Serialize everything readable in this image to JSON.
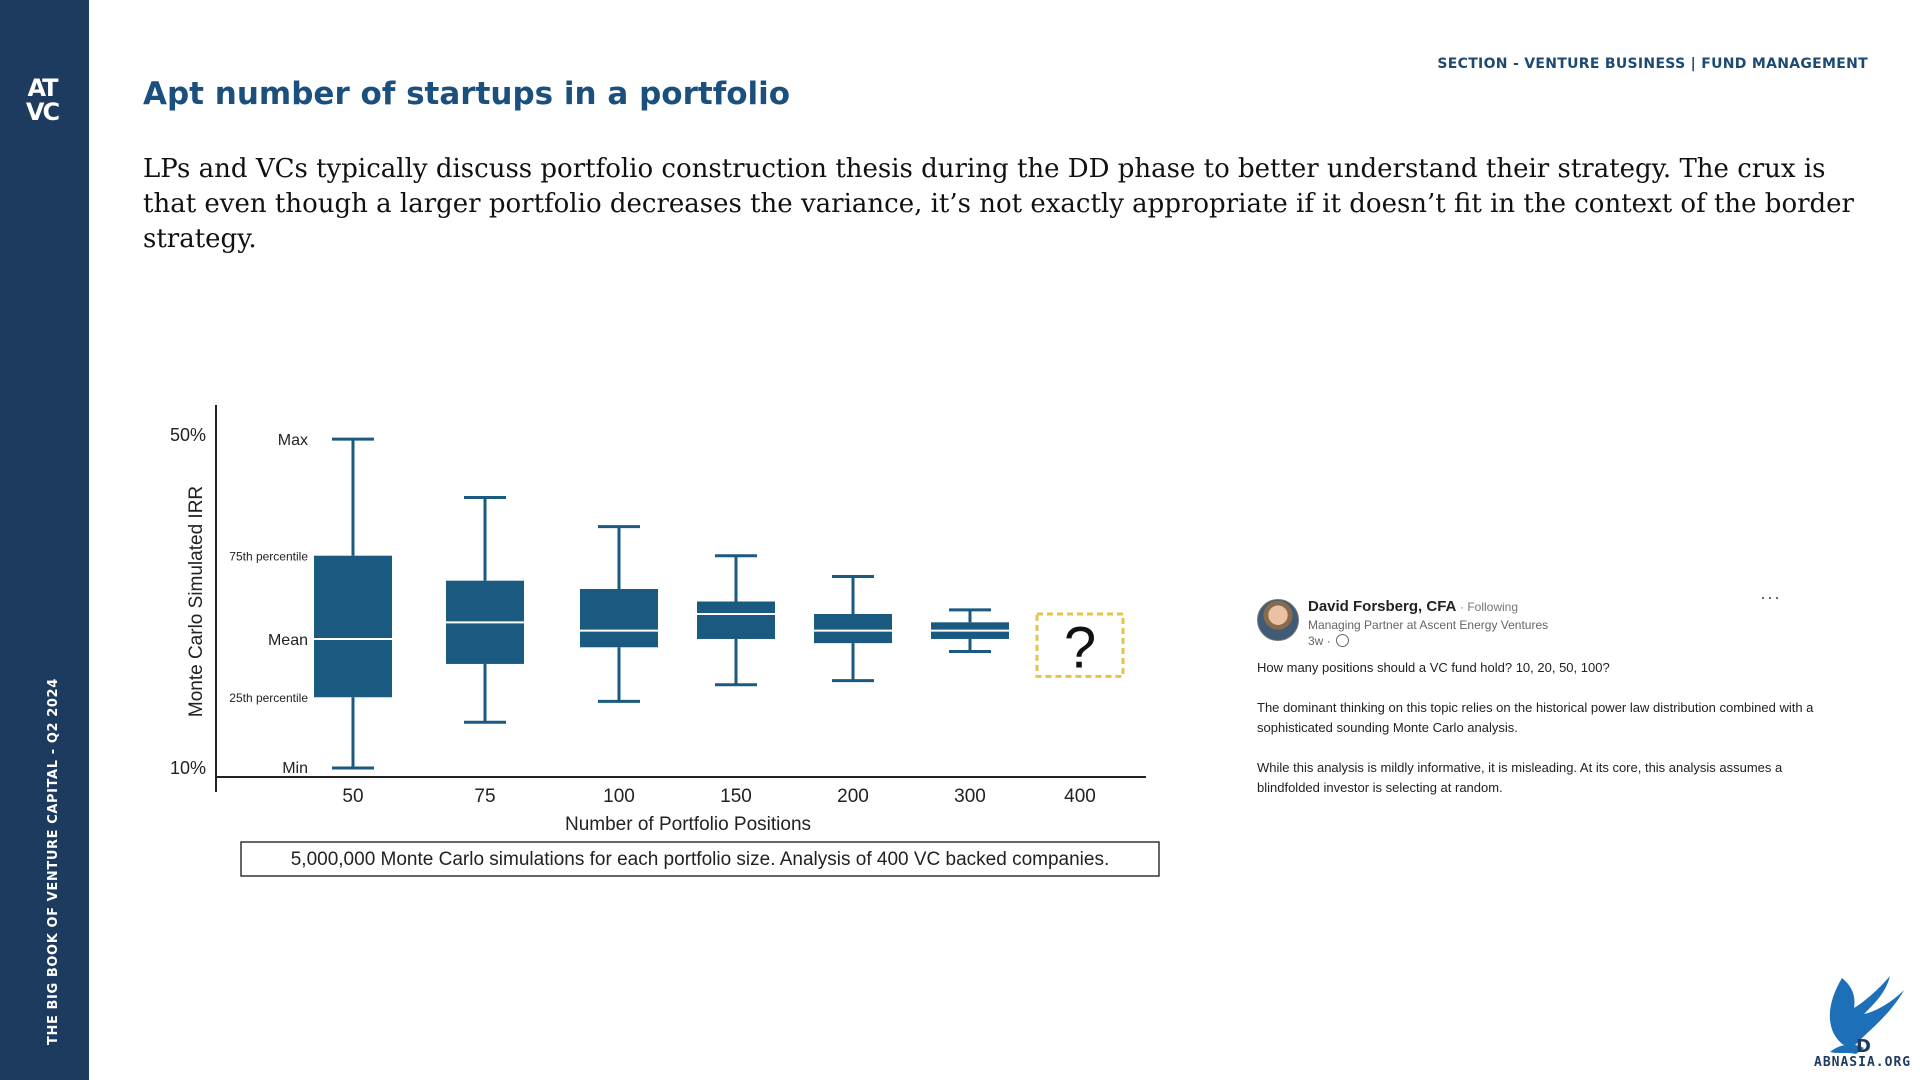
{
  "sidebar": {
    "logo_line1": "AT",
    "logo_line2": "VC",
    "vertical_text": "THE BIG BOOK OF VENTURE CAPITAL - Q2 2024"
  },
  "header": {
    "section": "SECTION - VENTURE BUSINESS | FUND MANAGEMENT",
    "title": "Apt number of startups in a portfolio"
  },
  "intro": "LPs and VCs typically discuss portfolio construction thesis during the DD phase to better understand their strategy. The crux is that even though a larger portfolio decreases the variance, it’s not exactly appropriate if it doesn’t fit in the context of the border strategy.",
  "chart_data": {
    "type": "boxplot",
    "title": "",
    "xlabel": "Number of Portfolio Positions",
    "ylabel": "Monte Carlo Simulated IRR",
    "y_ticks": [
      "50%",
      "10%"
    ],
    "ylim": [
      10,
      50
    ],
    "row_labels": {
      "max": "Max",
      "q3": "75th percentile",
      "mean": "Mean",
      "q1": "25th percentile",
      "min": "Min"
    },
    "categories": [
      "50",
      "75",
      "100",
      "150",
      "200",
      "300",
      "400"
    ],
    "boxes": [
      {
        "min": 10.0,
        "q1": 18.5,
        "mean": 25.5,
        "q3": 35.5,
        "max": 49.5
      },
      {
        "min": 15.5,
        "q1": 22.5,
        "mean": 27.5,
        "q3": 32.5,
        "max": 42.5
      },
      {
        "min": 18.0,
        "q1": 24.5,
        "mean": 26.5,
        "q3": 31.5,
        "max": 39.0
      },
      {
        "min": 20.0,
        "q1": 25.5,
        "mean": 28.5,
        "q3": 30.0,
        "max": 35.5
      },
      {
        "min": 20.5,
        "q1": 25.0,
        "mean": 26.5,
        "q3": 28.5,
        "max": 33.0
      },
      {
        "min": 24.0,
        "q1": 25.5,
        "mean": 26.5,
        "q3": 27.5,
        "max": 29.0
      },
      {
        "unknown": true,
        "label": "?"
      }
    ],
    "box_color": "#1a5a80",
    "unknown_border_color": "#e6c34a",
    "footnote": "5,000,000 Monte Carlo simulations for each portfolio size. Analysis of 400 VC backed companies.",
    "grid": false,
    "legend": "none"
  },
  "post": {
    "name": "David Forsberg, CFA",
    "following": "· Following",
    "role": "Managing Partner at Ascent Energy Ventures",
    "time": "3w ·",
    "more": "···",
    "paragraphs": [
      "How many positions should a VC fund hold? 10, 20, 50, 100?",
      "The dominant thinking on this topic relies on the historical power law distribution combined with a sophisticated sounding Monte Carlo analysis.",
      "While this analysis is mildly informative, it is misleading. At its core, this analysis assumes a blindfolded investor is selecting at random."
    ]
  },
  "footer_logo": {
    "text": "ABNASIA.ORG",
    "mark_letter": "D"
  }
}
